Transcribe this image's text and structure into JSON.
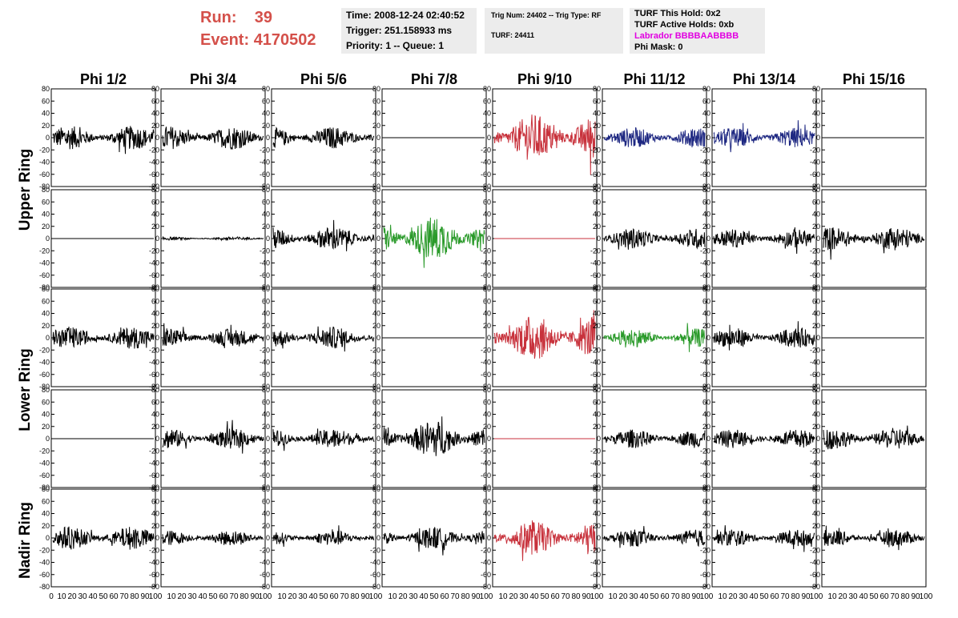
{
  "run": {
    "run_label": "Run:",
    "run_value": "39",
    "event_label": "Event:",
    "event_value": "4170502"
  },
  "info_time": {
    "time": "Time: 2008-12-24 02:40:52",
    "trigger": "Trigger: 251.158933 ms",
    "priority": "Priority: 1 -- Queue: 1"
  },
  "info_trig": {
    "trig": "Trig Num: 24402 -- Trig Type: RF",
    "turf": "TURF: 24411"
  },
  "info_turf": {
    "hold": "TURF This Hold: 0x2",
    "active": "TURF Active Holds: 0xb",
    "labrador": "Labrador BBBBAABBBB",
    "phimask": "Phi Mask: 0"
  },
  "columns": [
    "Phi 1/2",
    "Phi 3/4",
    "Phi 5/6",
    "Phi 7/8",
    "Phi 9/10",
    "Phi 11/12",
    "Phi 13/14",
    "Phi 15/16"
  ],
  "row_groups": [
    "Upper Ring",
    "Lower Ring",
    "Nadir Ring"
  ],
  "y_ticks": [
    "80",
    "60",
    "40",
    "20",
    "0",
    "-20",
    "-40",
    "-60",
    "-80"
  ],
  "x_ticks": [
    "0",
    "10",
    "20",
    "30",
    "40",
    "50",
    "60",
    "70",
    "80",
    "90",
    "100"
  ],
  "colors": {
    "red": "#c8323c",
    "blue": "#1e2882",
    "green": "#2a9a2a",
    "black": "#000000",
    "accent": "#d4504a",
    "labrador": "#e100e1"
  },
  "chart_data": {
    "type": "line",
    "xlim": [
      0,
      100
    ],
    "ylim": [
      -80,
      80
    ],
    "panel_amplitude_rows": [
      [
        14,
        14,
        13,
        0,
        28,
        12,
        12,
        0
      ],
      [
        0,
        2,
        14,
        26,
        0,
        12,
        11,
        14
      ],
      [
        13,
        11,
        13,
        0,
        27,
        11,
        12,
        0
      ],
      [
        0,
        12,
        12,
        22,
        0,
        11,
        11,
        13
      ],
      [
        14,
        9,
        9,
        13,
        20,
        10,
        10,
        10
      ]
    ],
    "panel_color_rows": [
      [
        "black",
        "black",
        "black",
        "black",
        "red",
        "blue",
        "blue",
        "black"
      ],
      [
        "black",
        "black",
        "black",
        "green",
        "red",
        "black",
        "black",
        "black"
      ],
      [
        "black",
        "black",
        "black",
        "black",
        "red",
        "green",
        "black",
        "black"
      ],
      [
        "black",
        "black",
        "black",
        "black",
        "red",
        "black",
        "black",
        "black"
      ],
      [
        "black",
        "black",
        "black",
        "black",
        "red",
        "black",
        "black",
        "black"
      ]
    ]
  }
}
